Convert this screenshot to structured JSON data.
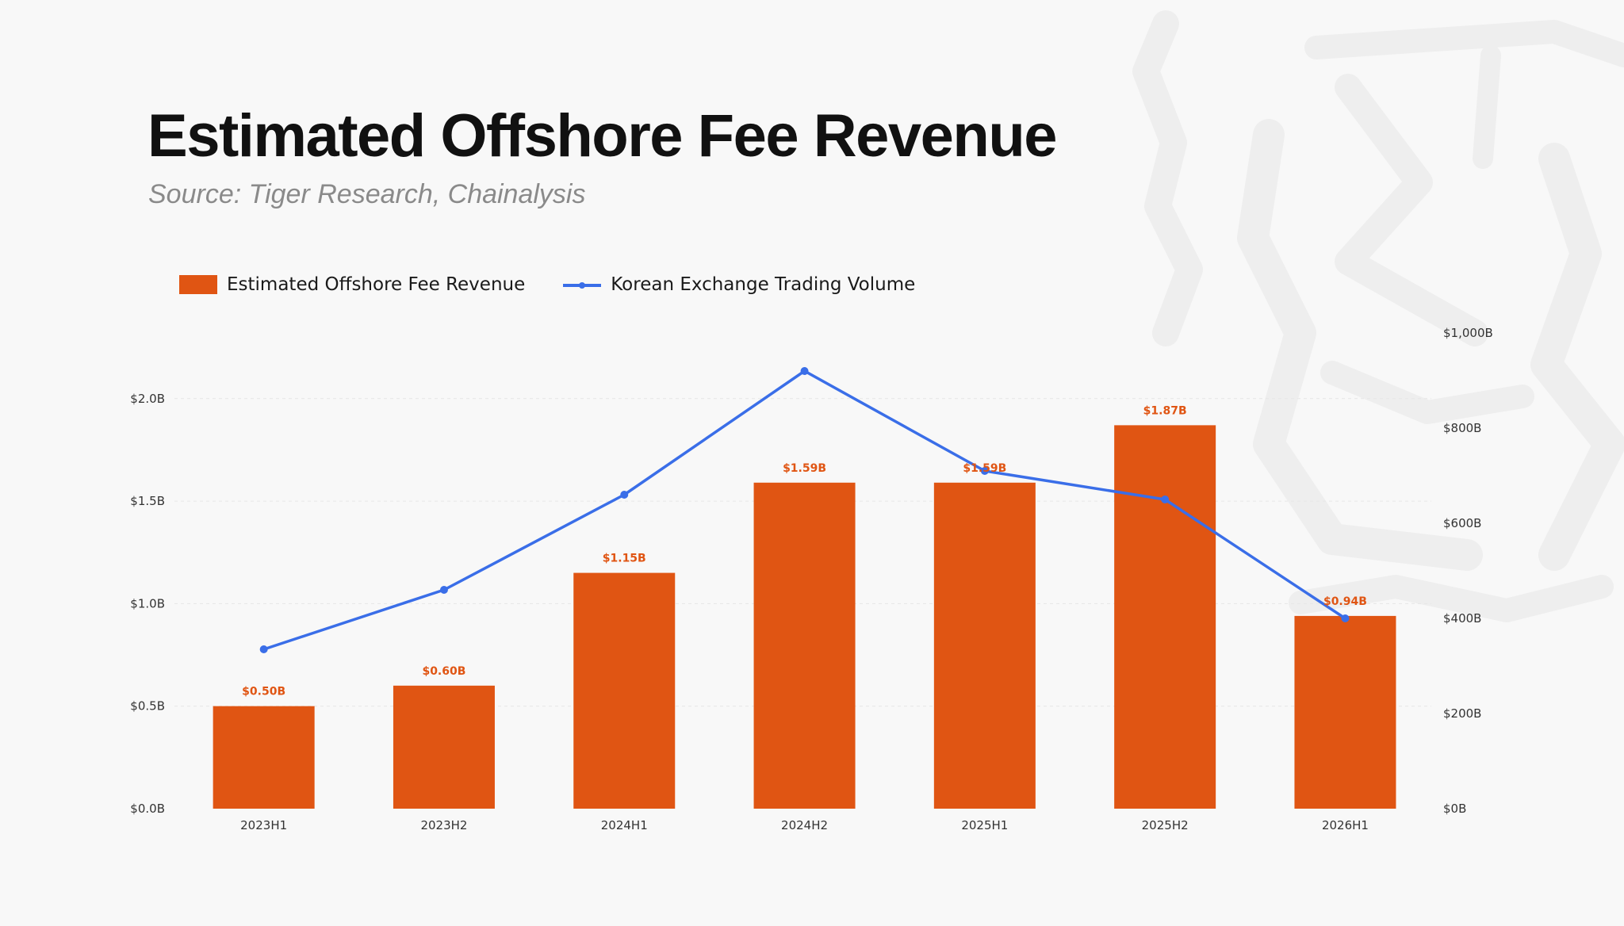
{
  "title": "Estimated Offshore Fee Revenue",
  "subtitle": "Source: Tiger Research, Chainalysis",
  "colors": {
    "bar": "#e05513",
    "line": "#3a6ee8",
    "background": "#f8f8f8",
    "watermark": "#eeeeee"
  },
  "chart_data": {
    "type": "bar",
    "categories": [
      "2023H1",
      "2023H2",
      "2024H1",
      "2024H2",
      "2025H1",
      "2025H2",
      "2026H1"
    ],
    "series": [
      {
        "name": "Estimated Offshore Fee Revenue",
        "type": "bar",
        "axis": "left",
        "values": [
          0.5,
          0.6,
          1.15,
          1.59,
          1.59,
          1.87,
          0.94
        ],
        "labels": [
          "$0.50B",
          "$0.60B",
          "$1.15B",
          "$1.59B",
          "$1.59B",
          "$1.87B",
          "$0.94B"
        ]
      },
      {
        "name": "Korean Exchange Trading Volume",
        "type": "line",
        "axis": "right",
        "values": [
          335,
          460,
          660,
          920,
          710,
          650,
          400
        ]
      }
    ],
    "y_left": {
      "ylim": [
        0,
        2.32
      ],
      "ticks": [
        0,
        0.5,
        1.0,
        1.5,
        2.0
      ],
      "tick_labels": [
        "$0.0B",
        "$0.5B",
        "$1.0B",
        "$1.5B",
        "$2.0B"
      ]
    },
    "y_right": {
      "ylim": [
        0,
        1000
      ],
      "ticks": [
        0,
        200,
        400,
        600,
        800,
        1000
      ],
      "tick_labels": [
        "$0B",
        "$200B",
        "$400B",
        "$600B",
        "$800B",
        "$1,000B"
      ]
    },
    "grid": true,
    "legend_position": "top-left"
  }
}
